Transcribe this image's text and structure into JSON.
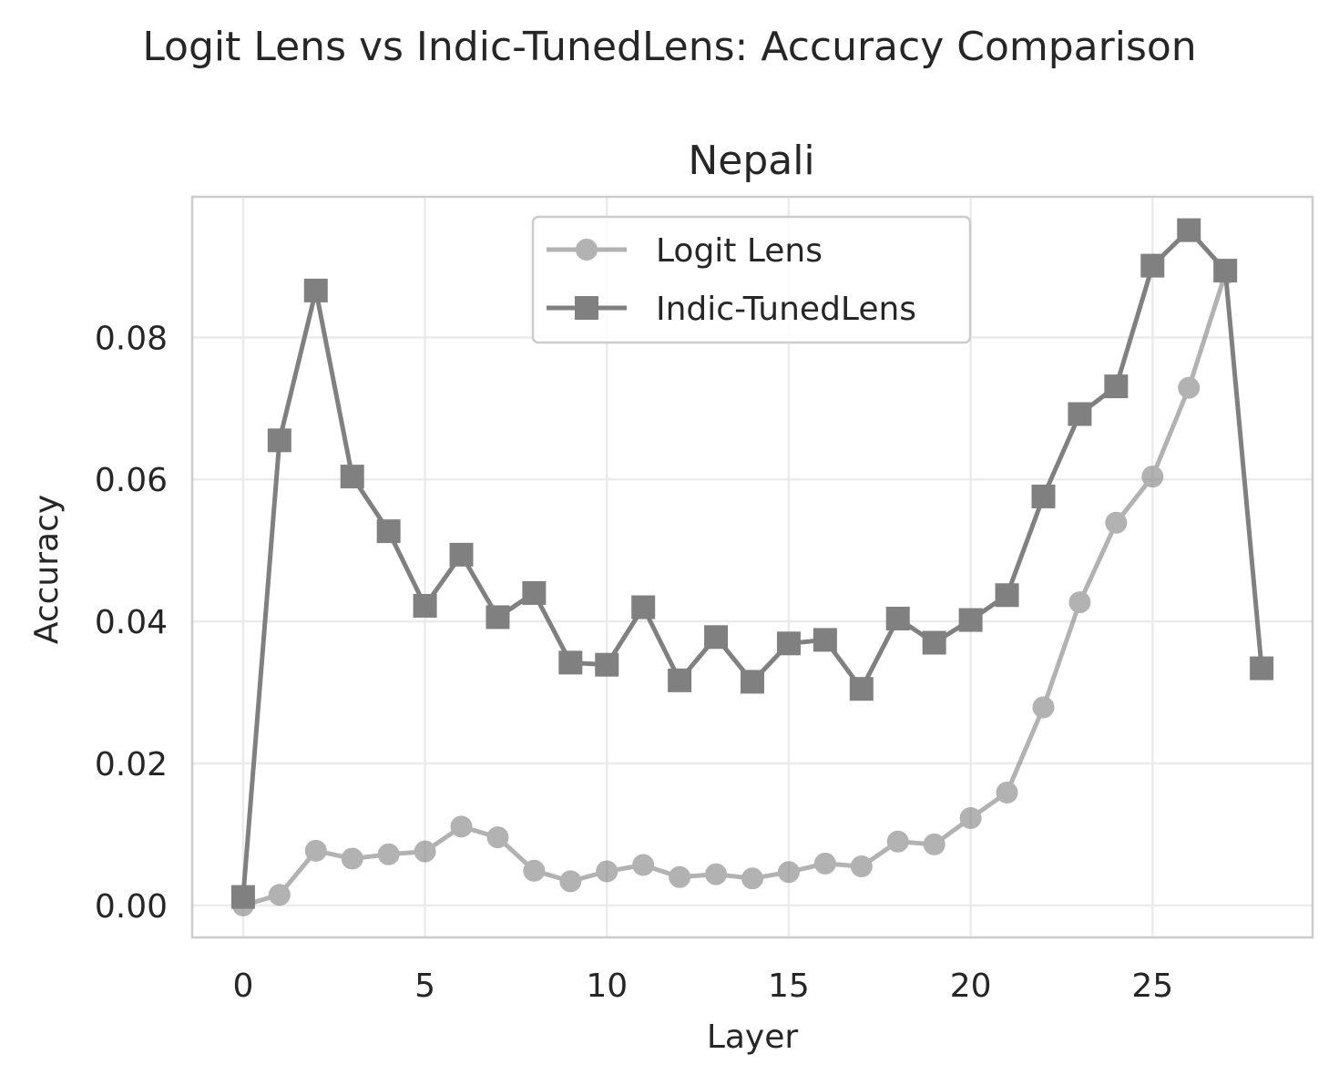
{
  "figure": {
    "suptitle": "Logit Lens vs Indic-TunedLens: Accuracy Comparison"
  },
  "chart_data": {
    "type": "line",
    "title": "Nepali",
    "xlabel": "Layer",
    "ylabel": "Accuracy",
    "xlim": [
      -1.4,
      29.4
    ],
    "ylim": [
      -0.0045,
      0.0998
    ],
    "xticks": [
      0,
      5,
      10,
      15,
      20,
      25
    ],
    "xtick_labels": [
      "0",
      "5",
      "10",
      "15",
      "20",
      "25"
    ],
    "yticks": [
      0.0,
      0.02,
      0.04,
      0.06,
      0.08
    ],
    "ytick_labels": [
      "0.00",
      "0.02",
      "0.04",
      "0.06",
      "0.08"
    ],
    "grid": true,
    "legend_position": "upper center",
    "x": [
      0,
      1,
      2,
      3,
      4,
      5,
      6,
      7,
      8,
      9,
      10,
      11,
      12,
      13,
      14,
      15,
      16,
      17,
      18,
      19,
      20,
      21,
      22,
      23,
      24,
      25,
      26,
      27,
      28
    ],
    "series": [
      {
        "name": "Logit Lens",
        "marker": "circle",
        "color": "#808080",
        "opacity": 0.6,
        "x": [
          0,
          1,
          2,
          3,
          4,
          5,
          6,
          7,
          8,
          9,
          10,
          11,
          12,
          13,
          14,
          15,
          16,
          17,
          18,
          19,
          20,
          21,
          22,
          23,
          24,
          25,
          26,
          27
        ],
        "values": [
          0.0,
          0.0015,
          0.0077,
          0.0066,
          0.0072,
          0.0076,
          0.0111,
          0.0096,
          0.0049,
          0.0034,
          0.0048,
          0.0057,
          0.004,
          0.0044,
          0.0038,
          0.0047,
          0.0059,
          0.0055,
          0.009,
          0.0086,
          0.0123,
          0.0159,
          0.0279,
          0.0427,
          0.0539,
          0.0604,
          0.0729,
          0.089
        ]
      },
      {
        "name": "Indic-TunedLens",
        "marker": "square",
        "color": "#808080",
        "opacity": 1.0,
        "x": [
          0,
          1,
          2,
          3,
          4,
          5,
          6,
          7,
          8,
          9,
          10,
          11,
          12,
          13,
          14,
          15,
          16,
          17,
          18,
          19,
          20,
          21,
          22,
          23,
          24,
          25,
          26,
          27,
          28
        ],
        "values": [
          0.0012,
          0.0655,
          0.0866,
          0.0604,
          0.0527,
          0.0422,
          0.0494,
          0.0406,
          0.044,
          0.0342,
          0.0339,
          0.042,
          0.0317,
          0.0378,
          0.0315,
          0.0369,
          0.0374,
          0.0305,
          0.0404,
          0.037,
          0.0402,
          0.0437,
          0.0576,
          0.0692,
          0.0731,
          0.0901,
          0.0951,
          0.0894,
          0.0334
        ]
      }
    ]
  }
}
